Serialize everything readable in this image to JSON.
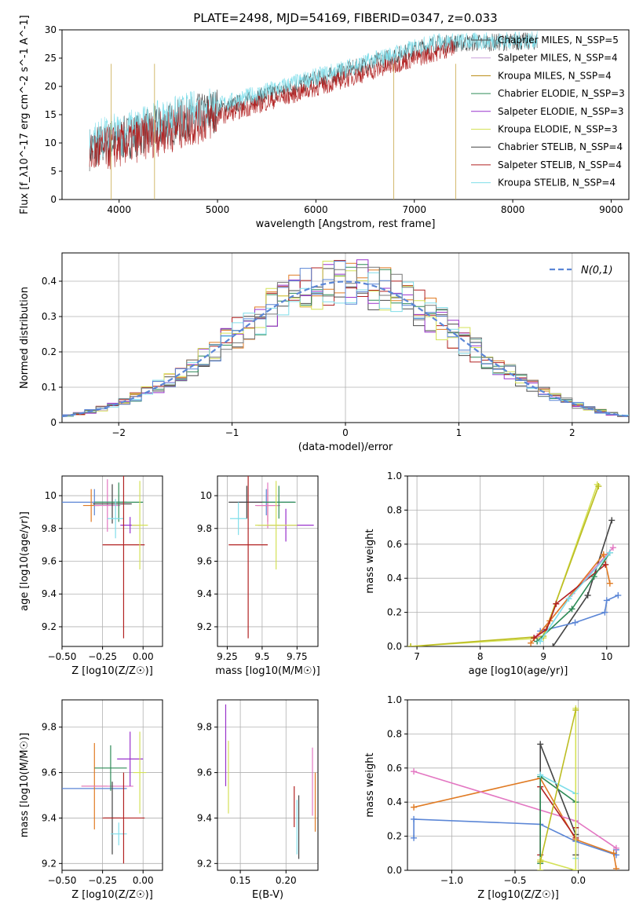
{
  "figure": {
    "title": "PLATE=2498, MJD=54169, FIBERID=0347, z=0.033"
  },
  "colors": {
    "cm": "#4a4a4a",
    "sm": "#c9a0dc",
    "km": "#b8860b",
    "ce": "#2e8b57",
    "se": "#9932cc",
    "ke": "#d4e157",
    "cs": "#444444",
    "ss": "#b22222",
    "ks": "#80deea",
    "blue": "#5b86d6",
    "orange": "#e07b24",
    "pink": "#e377c2",
    "gray": "#777777",
    "olive": "#bcbd22"
  },
  "chart_data": [
    {
      "id": "spectrum",
      "type": "line",
      "xlabel": "wavelength [Angstrom, rest frame]",
      "ylabel": "Flux [f_λ10^-17 erg cm^-2 s^-1 A^-1]",
      "xlim": [
        3420,
        9180
      ],
      "ylim": [
        0,
        30
      ],
      "xticks": [
        4000,
        5000,
        6000,
        7000,
        8000,
        9000
      ],
      "yticks": [
        0,
        5,
        10,
        15,
        20,
        25,
        30
      ],
      "legend": [
        {
          "label": "Chabrier MILES, N_SSP=5",
          "color": "cm"
        },
        {
          "label": "Salpeter MILES, N_SSP=4",
          "color": "sm"
        },
        {
          "label": "Kroupa MILES, N_SSP=4",
          "color": "km"
        },
        {
          "label": "Chabrier ELODIE, N_SSP=3",
          "color": "ce"
        },
        {
          "label": "Salpeter ELODIE, N_SSP=3",
          "color": "se"
        },
        {
          "label": "Kroupa ELODIE, N_SSP=3",
          "color": "ke"
        },
        {
          "label": "Chabrier STELIB, N_SSP=4",
          "color": "cs"
        },
        {
          "label": "Salpeter STELIB, N_SSP=4",
          "color": "ss"
        },
        {
          "label": "Kroupa STELIB, N_SSP=4",
          "color": "ks"
        }
      ],
      "series": [
        {
          "color": "cm",
          "x": [
            3700,
            7200,
            8250
          ],
          "y": [
            9,
            27.5,
            28
          ]
        },
        {
          "color": "ks",
          "x": [
            3700,
            7200,
            8250
          ],
          "y": [
            10,
            27.8,
            28.2
          ]
        },
        {
          "color": "ss",
          "x": [
            3700,
            7420
          ],
          "y": [
            8,
            27
          ]
        }
      ],
      "drops": [
        {
          "x": 3920,
          "ymin": 0
        },
        {
          "x": 4360,
          "ymin": 0
        },
        {
          "x": 6790,
          "ymin": 0
        },
        {
          "x": 7420,
          "ymin": 0
        }
      ]
    },
    {
      "id": "residuals",
      "type": "bar",
      "xlabel": "(data-model)/error",
      "ylabel": "Normed distribution",
      "xlim": [
        -2.5,
        2.5
      ],
      "ylim": [
        0,
        0.48
      ],
      "xticks": [
        -2,
        -1,
        0,
        1,
        2
      ],
      "yticks": [
        0.0,
        0.1,
        0.2,
        0.3,
        0.4
      ],
      "legend": [
        {
          "label": "N(0,1)",
          "color": "blue"
        }
      ],
      "bin_width": 0.1,
      "bin_start": -2.5,
      "series_colors": [
        "cm",
        "orange",
        "ce",
        "se",
        "ss",
        "ke",
        "ks",
        "blue",
        "gray"
      ]
    },
    {
      "id": "age_vs_Z",
      "type": "scatter",
      "xlabel": "Z [log10(Z/Z☉)]",
      "ylabel": "age [log10(age/yr)]",
      "xlim": [
        -0.5,
        0.12
      ],
      "ylim": [
        9.08,
        10.12
      ],
      "xticks": [
        -0.5,
        -0.25,
        0.0
      ],
      "xticklabels": [
        "−0.50",
        "−0.25",
        "0.00"
      ],
      "yticks": [
        9.2,
        9.4,
        9.6,
        9.8,
        10.0
      ],
      "points": [
        {
          "x": -0.3,
          "y": 9.96,
          "xerr": 0.2,
          "yerr": 0.08,
          "color": "blue"
        },
        {
          "x": -0.32,
          "y": 9.94,
          "xerr": 0.05,
          "yerr": 0.1,
          "color": "orange"
        },
        {
          "x": -0.22,
          "y": 9.94,
          "xerr": 0.08,
          "yerr": 0.16,
          "color": "pink"
        },
        {
          "x": -0.19,
          "y": 9.95,
          "xerr": 0.12,
          "yerr": 0.12,
          "color": "cs"
        },
        {
          "x": -0.15,
          "y": 9.96,
          "xerr": 0.15,
          "yerr": 0.12,
          "color": "ce"
        },
        {
          "x": -0.17,
          "y": 9.86,
          "xerr": 0.05,
          "yerr": 0.12,
          "color": "ks"
        },
        {
          "x": -0.08,
          "y": 9.82,
          "xerr": 0.06,
          "yerr": 0.05,
          "color": "se"
        },
        {
          "x": -0.12,
          "y": 9.7,
          "xerr": 0.13,
          "yerr": 0.57,
          "color": "ss"
        },
        {
          "x": -0.02,
          "y": 9.82,
          "xerr": 0.05,
          "yerr": 0.27,
          "color": "ke"
        }
      ]
    },
    {
      "id": "age_vs_mass",
      "type": "scatter",
      "xlabel": "mass [log10(M/M☉)]",
      "ylabel": "",
      "xlim": [
        9.18,
        9.9
      ],
      "ylim": [
        9.08,
        10.12
      ],
      "xticks": [
        9.25,
        9.5,
        9.75
      ],
      "yticks": [
        9.2,
        9.4,
        9.6,
        9.8,
        10.0
      ],
      "points": [
        {
          "x": 9.53,
          "y": 9.96,
          "xerr": 0.2,
          "yerr": 0.08,
          "color": "blue"
        },
        {
          "x": 9.54,
          "y": 9.94,
          "xerr": 0.08,
          "yerr": 0.1,
          "color": "orange"
        },
        {
          "x": 9.54,
          "y": 9.94,
          "xerr": 0.09,
          "yerr": 0.14,
          "color": "pink"
        },
        {
          "x": 9.39,
          "y": 9.96,
          "xerr": 0.13,
          "yerr": 0.1,
          "color": "cs"
        },
        {
          "x": 9.62,
          "y": 9.96,
          "xerr": 0.12,
          "yerr": 0.1,
          "color": "ce"
        },
        {
          "x": 9.33,
          "y": 9.86,
          "xerr": 0.06,
          "yerr": 0.1,
          "color": "ks"
        },
        {
          "x": 9.67,
          "y": 9.82,
          "xerr": 0.2,
          "yerr": 0.1,
          "color": "se"
        },
        {
          "x": 9.4,
          "y": 9.7,
          "xerr": 0.14,
          "yerr": 0.57,
          "color": "ss"
        },
        {
          "x": 9.6,
          "y": 9.82,
          "xerr": 0.15,
          "yerr": 0.27,
          "color": "ke"
        }
      ]
    },
    {
      "id": "weight_vs_age",
      "type": "line",
      "xlabel": "age [log10(age/yr)]",
      "ylabel": "mass weight",
      "xlim": [
        6.85,
        10.35
      ],
      "ylim": [
        0,
        1
      ],
      "xticks": [
        7,
        8,
        9,
        10
      ],
      "yticks": [
        0.0,
        0.2,
        0.4,
        0.6,
        0.8,
        1.0
      ],
      "yticklabels": [
        "0.0",
        "0.2",
        "0.4",
        "0.6",
        "0.8",
        "1.0"
      ],
      "series": [
        {
          "color": "ke",
          "x": [
            6.9,
            9.0,
            9.85
          ],
          "y": [
            0.0,
            0.05,
            0.95
          ]
        },
        {
          "color": "olive",
          "x": [
            6.9,
            9.0,
            9.87
          ],
          "y": [
            0.0,
            0.06,
            0.94
          ]
        },
        {
          "color": "cs",
          "x": [
            9.15,
            9.7,
            10.08
          ],
          "y": [
            0.0,
            0.3,
            0.74
          ]
        },
        {
          "color": "pink",
          "x": [
            8.9,
            9.45,
            10.1
          ],
          "y": [
            0.06,
            0.31,
            0.58
          ]
        },
        {
          "color": "blue",
          "x": [
            8.95,
            9.5,
            9.97,
            10.0,
            10.18
          ],
          "y": [
            0.09,
            0.14,
            0.2,
            0.27,
            0.3
          ]
        },
        {
          "color": "orange",
          "x": [
            8.8,
            9.1,
            9.95,
            10.05
          ],
          "y": [
            0.02,
            0.15,
            0.54,
            0.37
          ]
        },
        {
          "color": "ss",
          "x": [
            8.85,
            9.05,
            9.2,
            9.98
          ],
          "y": [
            0.05,
            0.1,
            0.25,
            0.48
          ]
        },
        {
          "color": "ce",
          "x": [
            8.9,
            9.45,
            9.8,
            10.05
          ],
          "y": [
            0.03,
            0.22,
            0.41,
            0.55
          ]
        },
        {
          "color": "ks",
          "x": [
            8.95,
            9.4,
            10.05
          ],
          "y": [
            0.03,
            0.28,
            0.55
          ]
        }
      ]
    },
    {
      "id": "mass_vs_Z",
      "type": "scatter",
      "xlabel": "Z [log10(Z/Z☉)]",
      "ylabel": "mass [log10(M/M☉)]",
      "xlim": [
        -0.5,
        0.12
      ],
      "ylim": [
        9.17,
        9.92
      ],
      "xticks": [
        -0.5,
        -0.25,
        0.0
      ],
      "xticklabels": [
        "−0.50",
        "−0.25",
        "0.00"
      ],
      "yticks": [
        9.2,
        9.4,
        9.6,
        9.8
      ],
      "points": [
        {
          "x": -0.3,
          "y": 9.53,
          "xerr": 0.2,
          "yerr": 0.0,
          "color": "blue"
        },
        {
          "x": -0.3,
          "y": 9.54,
          "xerr": 0.08,
          "yerr": 0.19,
          "color": "orange"
        },
        {
          "x": -0.22,
          "y": 9.54,
          "xerr": 0.16,
          "yerr": 0.0,
          "color": "pink"
        },
        {
          "x": -0.19,
          "y": 9.4,
          "xerr": 0.05,
          "yerr": 0.16,
          "color": "cs"
        },
        {
          "x": -0.2,
          "y": 9.62,
          "xerr": 0.1,
          "yerr": 0.1,
          "color": "ce"
        },
        {
          "x": -0.15,
          "y": 9.33,
          "xerr": 0.05,
          "yerr": 0.05,
          "color": "ks"
        },
        {
          "x": -0.08,
          "y": 9.66,
          "xerr": 0.08,
          "yerr": 0.12,
          "color": "se"
        },
        {
          "x": -0.12,
          "y": 9.4,
          "xerr": 0.13,
          "yerr": 0.2,
          "color": "ss"
        },
        {
          "x": -0.02,
          "y": 9.6,
          "xerr": 0.04,
          "yerr": 0.18,
          "color": "ke"
        }
      ]
    },
    {
      "id": "mass_vs_EBV",
      "type": "scatter",
      "xlabel": "E(B-V)",
      "ylabel": "",
      "xlim": [
        0.125,
        0.235
      ],
      "ylim": [
        9.17,
        9.92
      ],
      "xticks": [
        0.15,
        0.2
      ],
      "xticklabels": [
        "0.15",
        "0.20"
      ],
      "yticks": [
        9.2,
        9.4,
        9.6,
        9.8
      ],
      "points": [
        {
          "x": 0.134,
          "y": 9.72,
          "xerr": 0,
          "yerr": 0.18,
          "color": "se"
        },
        {
          "x": 0.137,
          "y": 9.58,
          "xerr": 0,
          "yerr": 0.16,
          "color": "ke"
        },
        {
          "x": 0.209,
          "y": 9.45,
          "xerr": 0,
          "yerr": 0.09,
          "color": "ss"
        },
        {
          "x": 0.212,
          "y": 9.36,
          "xerr": 0,
          "yerr": 0.12,
          "color": "ks"
        },
        {
          "x": 0.214,
          "y": 9.36,
          "xerr": 0,
          "yerr": 0.14,
          "color": "cs"
        },
        {
          "x": 0.229,
          "y": 9.56,
          "xerr": 0,
          "yerr": 0.15,
          "color": "pink"
        },
        {
          "x": 0.232,
          "y": 9.47,
          "xerr": 0,
          "yerr": 0.13,
          "color": "orange"
        }
      ]
    },
    {
      "id": "weight_vs_Z",
      "type": "line",
      "xlabel": "Z [log10(Z/Z☉)]",
      "ylabel": "mass weight",
      "xlim": [
        -1.35,
        0.4
      ],
      "ylim": [
        0,
        1
      ],
      "xticks": [
        -1.0,
        -0.5,
        0.0
      ],
      "xticklabels": [
        "−1.0",
        "−0.5",
        "0.0"
      ],
      "yticks": [
        0.0,
        0.2,
        0.4,
        0.6,
        0.8,
        1.0
      ],
      "yticklabels": [
        "0.0",
        "0.2",
        "0.4",
        "0.6",
        "0.8",
        "1.0"
      ],
      "series": [
        {
          "color": "blue",
          "x": [
            -1.3,
            -1.3,
            -0.3,
            -0.02,
            0.3,
            0.3
          ],
          "y": [
            0.19,
            0.3,
            0.27,
            0.17,
            0.09,
            0.12
          ]
        },
        {
          "color": "orange",
          "x": [
            -1.3,
            -0.3,
            -0.02,
            0.28,
            0.3
          ],
          "y": [
            0.37,
            0.54,
            0.18,
            0.1,
            0.01
          ]
        },
        {
          "color": "pink",
          "x": [
            -1.3,
            -0.02,
            0.3
          ],
          "y": [
            0.58,
            0.29,
            0.13
          ]
        },
        {
          "color": "cs",
          "x": [
            -0.3,
            -0.3,
            -0.02,
            -0.02
          ],
          "y": [
            0.0,
            0.74,
            0.21,
            0.09
          ]
        },
        {
          "color": "ss",
          "x": [
            -0.3,
            -0.3,
            -0.02,
            -0.02
          ],
          "y": [
            0.09,
            0.49,
            0.19,
            0.25
          ]
        },
        {
          "color": "ce",
          "x": [
            -0.3,
            -0.3,
            -0.02
          ],
          "y": [
            0.04,
            0.55,
            0.4
          ]
        },
        {
          "color": "ks",
          "x": [
            -0.3,
            -0.02,
            -0.02
          ],
          "y": [
            0.56,
            0.45,
            0.07
          ]
        },
        {
          "color": "ke",
          "x": [
            -0.3,
            -0.3,
            -0.02,
            -0.02
          ],
          "y": [
            0.0,
            0.06,
            0.0,
            0.95
          ]
        },
        {
          "color": "olive",
          "x": [
            -0.3,
            -0.02
          ],
          "y": [
            0.05,
            0.94
          ]
        }
      ]
    }
  ]
}
